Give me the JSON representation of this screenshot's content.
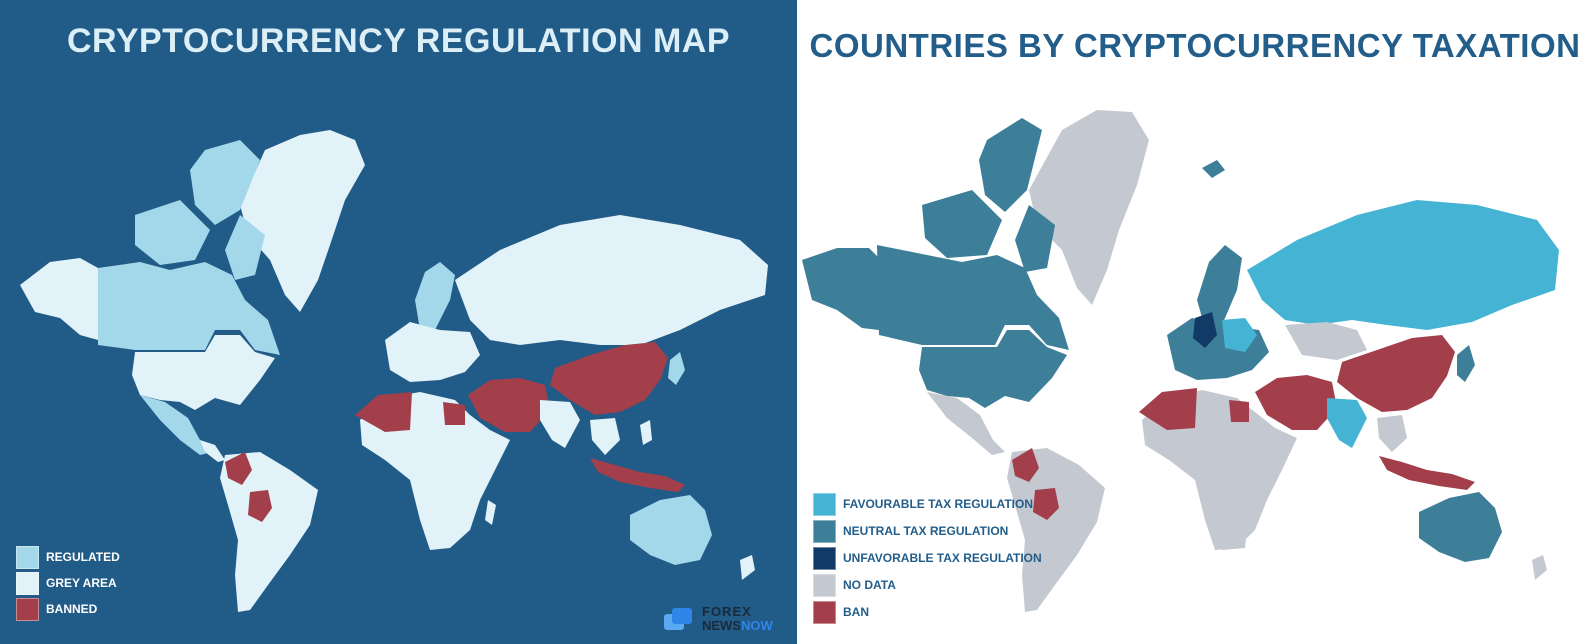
{
  "left_panel": {
    "title": "CRYPTOCURRENCY REGULATION MAP",
    "legend": [
      {
        "label": "REGULATED",
        "color": "#a3d8ea"
      },
      {
        "label": "GREY AREA",
        "color": "#e2f2f9"
      },
      {
        "label": "BANNED",
        "color": "#a33f4a"
      }
    ],
    "logo": {
      "line1": "FOREX",
      "line2a": "NEWS",
      "line2b": "NOW"
    }
  },
  "right_panel": {
    "title": "COUNTRIES BY CRYPTOCURRENCY TAXATION",
    "legend": [
      {
        "label": "FAVOURABLE TAX REGULATION",
        "color": "#44b3d4"
      },
      {
        "label": "NEUTRAL TAX REGULATION",
        "color": "#3d7f99"
      },
      {
        "label": "UNFAVORABLE TAX REGULATION",
        "color": "#123a66"
      },
      {
        "label": "NO DATA",
        "color": "#c4c9d1"
      },
      {
        "label": "BAN",
        "color": "#a33f4a"
      }
    ]
  },
  "colors": {
    "left_background": "#215b87",
    "regulated": "#a3d8ea",
    "grey_area": "#e2f2f9",
    "banned": "#a33f4a",
    "favourable": "#44b3d4",
    "neutral": "#3d7f99",
    "unfavorable": "#123a66",
    "no_data": "#c4c9d1"
  }
}
